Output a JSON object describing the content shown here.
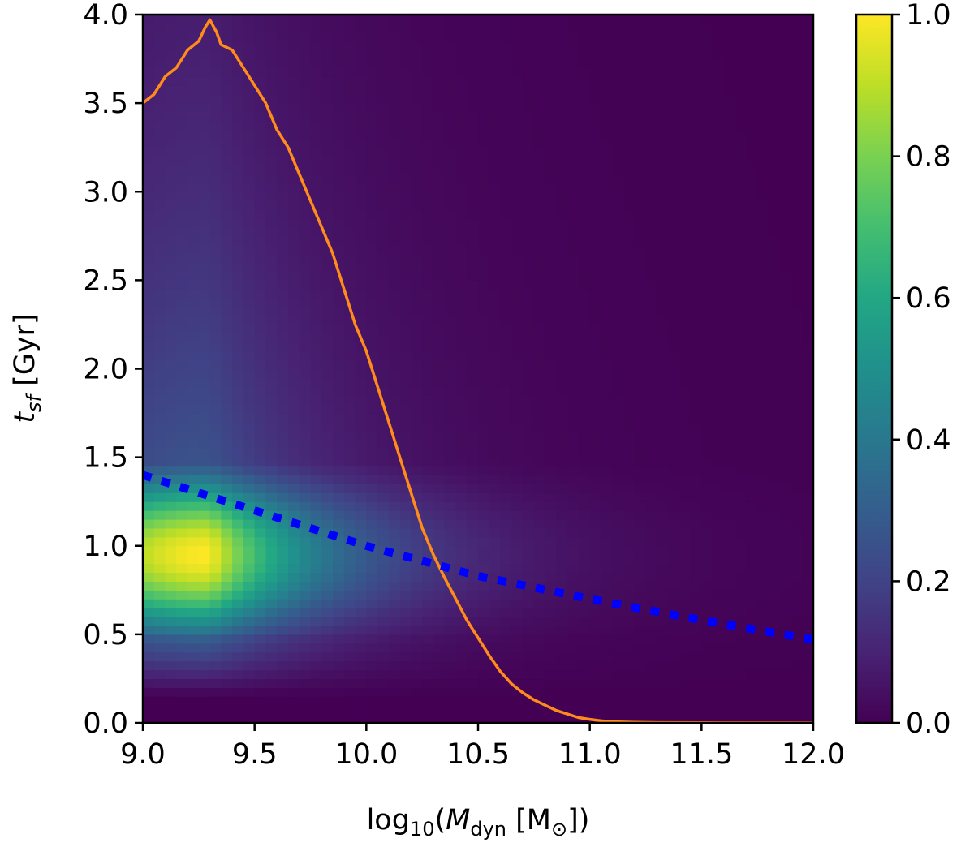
{
  "chart_data": {
    "type": "heatmap",
    "title": "",
    "x": {
      "label_prefix": "log",
      "label_sub": "10",
      "label_open": "(",
      "label_var": "M",
      "label_var_sub": "dyn",
      "label_unit_open": " [M",
      "label_unit_sub": "⊙",
      "label_close": "])",
      "range": [
        9.0,
        12.0
      ],
      "ticks": [
        {
          "value": 9.0,
          "label": "9.0"
        },
        {
          "value": 9.5,
          "label": "9.5"
        },
        {
          "value": 10.0,
          "label": "10.0"
        },
        {
          "value": 10.5,
          "label": "10.5"
        },
        {
          "value": 11.0,
          "label": "11.0"
        },
        {
          "value": 11.5,
          "label": "11.5"
        },
        {
          "value": 12.0,
          "label": "12.0"
        }
      ]
    },
    "y": {
      "label_var": "t",
      "label_var_sub": "sf",
      "label_unit": " [Gyr]",
      "range": [
        0.0,
        4.0
      ],
      "ticks": [
        {
          "value": 0.0,
          "label": "0.0"
        },
        {
          "value": 0.5,
          "label": "0.5"
        },
        {
          "value": 1.0,
          "label": "1.0"
        },
        {
          "value": 1.5,
          "label": "1.5"
        },
        {
          "value": 2.0,
          "label": "2.0"
        },
        {
          "value": 2.5,
          "label": "2.5"
        },
        {
          "value": 3.0,
          "label": "3.0"
        },
        {
          "value": 3.5,
          "label": "3.5"
        },
        {
          "value": 4.0,
          "label": "4.0"
        }
      ]
    },
    "colorbar": {
      "range": [
        0.0,
        1.0
      ],
      "colormap": "viridis",
      "ticks": [
        {
          "value": 0.0,
          "label": "0.0"
        },
        {
          "value": 0.2,
          "label": "0.2"
        },
        {
          "value": 0.4,
          "label": "0.4"
        },
        {
          "value": 0.6,
          "label": "0.6"
        },
        {
          "value": 0.8,
          "label": "0.8"
        },
        {
          "value": 1.0,
          "label": "1.0"
        }
      ]
    },
    "heatmap_model": {
      "description": "normalized density, peak near x=9.3, y=1.0",
      "peak_x": 9.3,
      "peak_y": 0.95
    },
    "series": [
      {
        "name": "orange curve",
        "color": "#ff8c1a",
        "style": "solid",
        "x": [
          9.0,
          9.05,
          9.1,
          9.15,
          9.2,
          9.25,
          9.28,
          9.3,
          9.33,
          9.35,
          9.4,
          9.45,
          9.5,
          9.55,
          9.6,
          9.65,
          9.7,
          9.75,
          9.8,
          9.85,
          9.9,
          9.95,
          10.0,
          10.05,
          10.1,
          10.15,
          10.2,
          10.25,
          10.3,
          10.35,
          10.4,
          10.45,
          10.5,
          10.55,
          10.6,
          10.65,
          10.7,
          10.75,
          10.8,
          10.85,
          10.9,
          10.95,
          11.0,
          11.05,
          11.1,
          11.2,
          11.3,
          11.5,
          12.0
        ],
        "y": [
          3.5,
          3.55,
          3.65,
          3.7,
          3.8,
          3.85,
          3.93,
          3.97,
          3.9,
          3.83,
          3.8,
          3.7,
          3.6,
          3.5,
          3.35,
          3.25,
          3.1,
          2.95,
          2.8,
          2.65,
          2.45,
          2.25,
          2.1,
          1.9,
          1.7,
          1.5,
          1.3,
          1.1,
          0.95,
          0.82,
          0.7,
          0.58,
          0.48,
          0.38,
          0.29,
          0.22,
          0.17,
          0.13,
          0.1,
          0.07,
          0.05,
          0.03,
          0.02,
          0.012,
          0.007,
          0.003,
          0.002,
          0.001,
          0.0
        ]
      },
      {
        "name": "blue dotted line",
        "color": "#0000ff",
        "style": "dotted",
        "x": [
          9.0,
          9.5,
          10.0,
          10.5,
          11.0,
          11.5,
          12.0
        ],
        "y": [
          1.4,
          1.2,
          1.0,
          0.83,
          0.7,
          0.58,
          0.47
        ]
      }
    ]
  }
}
